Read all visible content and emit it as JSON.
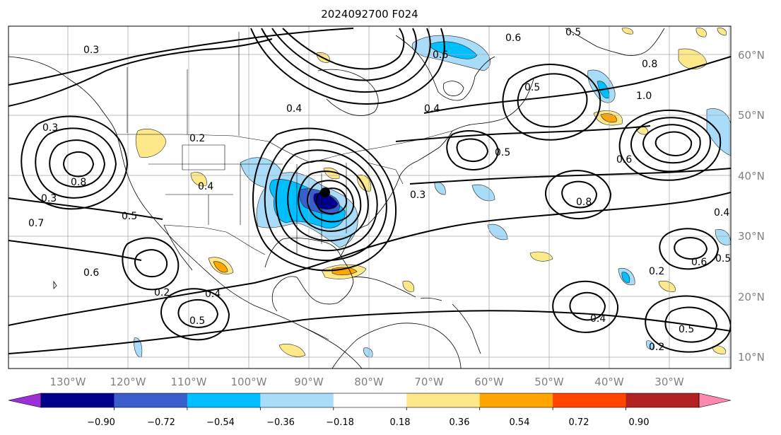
{
  "title": "2024092700 F024",
  "longitude_labels": [
    "130°W",
    "120°W",
    "110°W",
    "100°W",
    "90°W",
    "80°W",
    "70°W",
    "60°W",
    "50°W",
    "40°W",
    "30°W"
  ],
  "latitude_labels": [
    "60°N",
    "50°N",
    "40°N",
    "30°N",
    "20°N",
    "10°N"
  ],
  "colorbar": {
    "ticks": [
      "−0.90",
      "−0.72",
      "−0.54",
      "−0.36",
      "−0.18",
      "0.18",
      "0.36",
      "0.54",
      "0.72",
      "0.90"
    ],
    "colors": [
      "#9b30d9",
      "#00008b",
      "#3a5fcd",
      "#00bfff",
      "#a8dcf9",
      "#ffffff",
      "#fde88a",
      "#ffa500",
      "#ff4500",
      "#b22222",
      "#ff88b0"
    ]
  },
  "contour_labels": [
    "0.6",
    "0.6",
    "0.5",
    "0.8",
    "1.0",
    "0.5",
    "0.3",
    "0.4",
    "0.2",
    "0.4",
    "0.3",
    "0.8",
    "0.3",
    "0.7",
    "0.5",
    "0.6",
    "0.2",
    "0.4",
    "0.5",
    "0.3",
    "0.4",
    "0.5",
    "0.8",
    "0.6",
    "0.4",
    "0.2",
    "0.5",
    "0.6",
    "0.2",
    "0.4",
    "0.5"
  ]
}
